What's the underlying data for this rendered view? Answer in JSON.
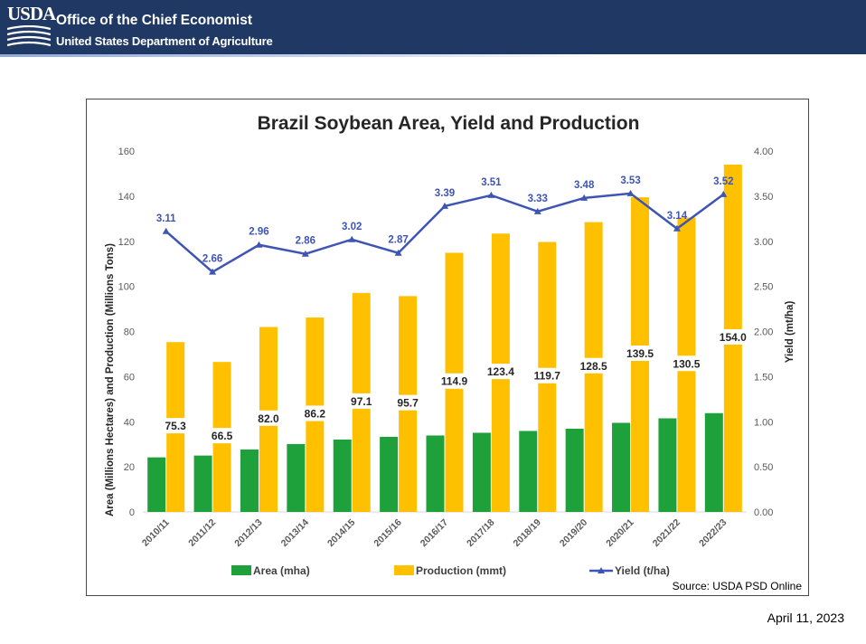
{
  "header": {
    "logo_text": "USDA",
    "office": "Office of the Chief Economist",
    "department": "United States Department of Agriculture"
  },
  "footer": {
    "date": "April 11, 2023"
  },
  "colors": {
    "banner": "#1f3864",
    "area": "#1ea13a",
    "production": "#ffc000",
    "yield": "#3f55b4"
  },
  "chart_data": {
    "type": "bar",
    "title": "Brazil Soybean Area, Yield and Production",
    "ylabel": "Area (Millions Hectares) and Production (Millions Tons)",
    "y2label": "Yield (mt/ha)",
    "source": "Source: USDA PSD Online",
    "ylim": [
      0,
      160
    ],
    "y2lim": [
      0,
      4
    ],
    "y_ticks": [
      "0",
      "20",
      "40",
      "60",
      "80",
      "100",
      "120",
      "140",
      "160"
    ],
    "y2_ticks": [
      "0.00",
      "0.50",
      "1.00",
      "1.50",
      "2.00",
      "2.50",
      "3.00",
      "3.50",
      "4.00"
    ],
    "grid": false,
    "legend_position": "bottom",
    "categories": [
      "2010/11",
      "2011/12",
      "2012/13",
      "2013/14",
      "2014/15",
      "2015/16",
      "2016/17",
      "2017/18",
      "2018/19",
      "2019/20",
      "2020/21",
      "2021/22",
      "2022/23"
    ],
    "series": [
      {
        "name": "Area (mha)",
        "kind": "bar",
        "axis": "left",
        "values": [
          24.2,
          25.0,
          27.7,
          30.1,
          32.1,
          33.3,
          33.9,
          35.1,
          35.9,
          36.9,
          39.5,
          41.5,
          43.8
        ],
        "labeled": false
      },
      {
        "name": "Production (mmt)",
        "kind": "bar",
        "axis": "left",
        "values": [
          75.3,
          66.5,
          82.0,
          86.2,
          97.1,
          95.7,
          114.9,
          123.4,
          119.7,
          128.5,
          139.5,
          130.5,
          154.0
        ],
        "labels": [
          "75.3",
          "66.5",
          "82.0",
          "86.2",
          "97.1",
          "95.7",
          "114.9",
          "123.4",
          "119.7",
          "128.5",
          "139.5",
          "130.5",
          "154.0"
        ],
        "labeled": true
      },
      {
        "name": "Yield (t/ha)",
        "kind": "line",
        "axis": "right",
        "values": [
          3.11,
          2.66,
          2.96,
          2.86,
          3.02,
          2.87,
          3.39,
          3.51,
          3.33,
          3.48,
          3.53,
          3.14,
          3.52
        ],
        "labels": [
          "3.11",
          "2.66",
          "2.96",
          "2.86",
          "3.02",
          "2.87",
          "3.39",
          "3.51",
          "3.33",
          "3.48",
          "3.53",
          "3.14",
          "3.52"
        ],
        "labeled": true
      }
    ]
  }
}
